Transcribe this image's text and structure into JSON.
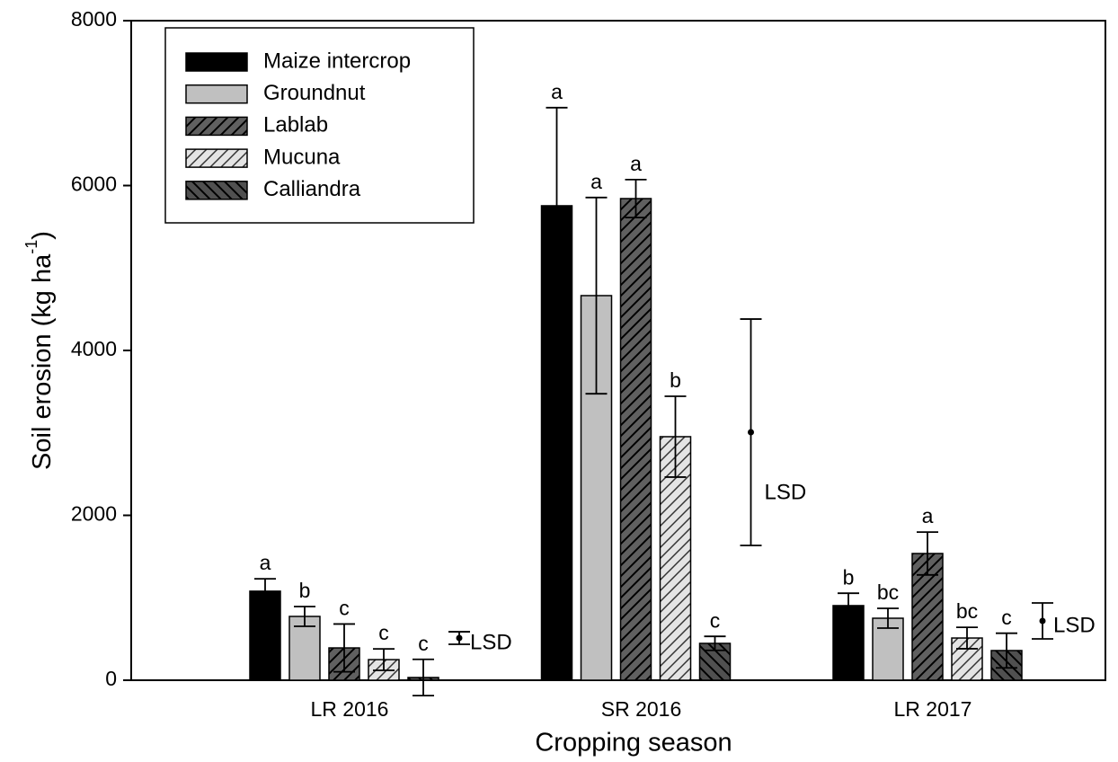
{
  "chart_data": {
    "type": "bar",
    "x_label": "Cropping season",
    "y_label": [
      "Soil erosion (kg ha",
      "-1",
      ")"
    ],
    "categories": [
      "LR 2016",
      "SR 2016",
      "LR 2017"
    ],
    "ylim": [
      0,
      8000
    ],
    "yticks": [
      0,
      2000,
      4000,
      6000,
      8000
    ],
    "legend": "top-left",
    "series": [
      {
        "name": "Maize intercrop",
        "color": "#000000",
        "hatch": "none",
        "values": [
          1080,
          5755,
          905
        ],
        "errors": [
          150,
          1190,
          150
        ],
        "letters": [
          "a",
          "a",
          "b"
        ]
      },
      {
        "name": "Groundnut",
        "color": "#c0c0c0",
        "hatch": "none",
        "values": [
          774,
          4665,
          752
        ],
        "errors": [
          120,
          1190,
          120
        ],
        "letters": [
          "b",
          "a",
          "bc"
        ]
      },
      {
        "name": "Lablab",
        "color": "#606060",
        "hatch": "/",
        "values": [
          392,
          5842,
          1537
        ],
        "errors": [
          290,
          230,
          260
        ],
        "letters": [
          "c",
          "a",
          "a"
        ]
      },
      {
        "name": "Mucuna",
        "color": "#e4e4e4",
        "hatch": "/",
        "values": [
          250,
          2954,
          512
        ],
        "errors": [
          130,
          490,
          130
        ],
        "letters": [
          "c",
          "b",
          "bc"
        ]
      },
      {
        "name": "Calliandra",
        "color": "#505050",
        "hatch": "\\",
        "values": [
          33,
          447,
          360
        ],
        "errors": [
          220,
          85,
          210
        ],
        "letters": [
          "c",
          "c",
          "c"
        ]
      }
    ],
    "lsd": {
      "label": "LSD",
      "values": [
        512,
        3008,
        719
      ],
      "errors": [
        76,
        1373,
        218
      ]
    }
  }
}
